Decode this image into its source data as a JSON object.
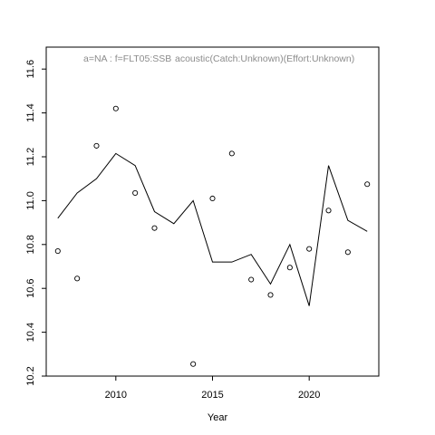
{
  "chart_data": {
    "type": "scatter",
    "title_left": "a=NA  :  f=FLT05:SSB",
    "title_right": "acoustic(Catch:Unknown)(Effort:Unknown)",
    "xlabel": "Year",
    "ylabel": "",
    "xlim": [
      2006.4,
      2023.6
    ],
    "ylim": [
      10.2,
      11.7
    ],
    "x_ticks": [
      2010,
      2015,
      2020
    ],
    "y_ticks": [
      10.2,
      10.4,
      10.6,
      10.8,
      11.0,
      11.2,
      11.4,
      11.6
    ],
    "x_tick_labels": [
      "2010",
      "2015",
      "2020"
    ],
    "y_tick_labels": [
      "10.2",
      "10.4",
      "10.6",
      "10.8",
      "11.0",
      "11.2",
      "11.4",
      "11.6"
    ],
    "grid": false,
    "series": [
      {
        "kind": "points",
        "x": [
          2007,
          2008,
          2009,
          2010,
          2011,
          2012,
          2013,
          2014,
          2015,
          2016,
          2017,
          2018,
          2019,
          2020,
          2021,
          2022,
          2023
        ],
        "y": [
          10.77,
          10.645,
          11.25,
          11.42,
          11.035,
          10.875,
          null,
          10.255,
          11.01,
          11.215,
          10.64,
          10.57,
          10.695,
          10.78,
          10.955,
          10.765,
          11.075
        ]
      },
      {
        "kind": "line",
        "x": [
          2007,
          2008,
          2009,
          2010,
          2011,
          2012,
          2013,
          2014,
          2015,
          2016,
          2017,
          2018,
          2019,
          2020,
          2021,
          2022,
          2023
        ],
        "y": [
          10.92,
          11.035,
          11.1,
          11.215,
          11.16,
          10.95,
          10.895,
          11.0,
          10.72,
          10.72,
          10.755,
          10.62,
          10.8,
          10.52,
          11.16,
          10.91,
          10.86
        ]
      }
    ]
  }
}
